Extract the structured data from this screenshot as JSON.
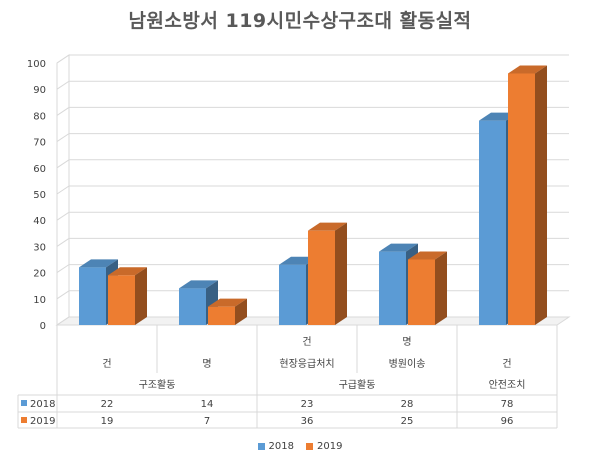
{
  "title": "남원소방서 119시민수상구조대 활동실적",
  "chart_data": {
    "type": "bar",
    "title": "남원소방서 119시민수상구조대 활동실적",
    "xlabel": "",
    "ylabel": "",
    "ylim": [
      0,
      100
    ],
    "yticks": [
      0,
      10,
      20,
      30,
      40,
      50,
      60,
      70,
      80,
      90,
      100
    ],
    "grid": true,
    "legend_position": "bottom",
    "categories": [
      "건",
      "명",
      "건 현장응급처치",
      "명 병원이송",
      "건"
    ],
    "category_levels": [
      {
        "level": "sub1",
        "labels": [
          "건",
          "명",
          "건",
          "명",
          "건"
        ]
      },
      {
        "level": "sub2",
        "labels": [
          "",
          "",
          "현장응급처치",
          "병원이송",
          ""
        ]
      },
      {
        "level": "group",
        "groups": [
          {
            "label": "구조활동",
            "span": [
              0,
              1
            ]
          },
          {
            "label": "구급활동",
            "span": [
              2,
              3
            ]
          },
          {
            "label": "안전조치",
            "span": [
              4,
              4
            ]
          }
        ]
      }
    ],
    "series": [
      {
        "name": "2018",
        "values": [
          22,
          14,
          23,
          28,
          78
        ],
        "color": "#5b9bd5"
      },
      {
        "name": "2019",
        "values": [
          19,
          7,
          36,
          25,
          96
        ],
        "color": "#ed7d31"
      }
    ],
    "data_table": true
  }
}
